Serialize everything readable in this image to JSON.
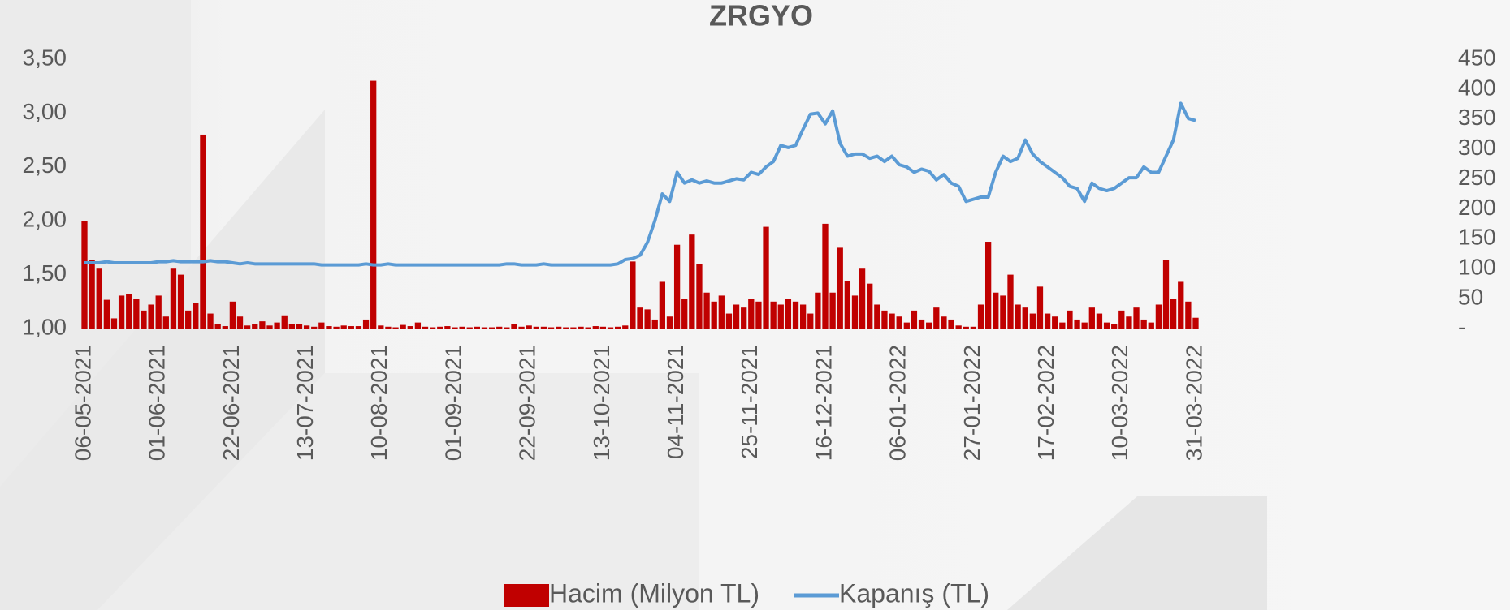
{
  "chart_data": {
    "type": "bar-line",
    "title": "ZRGYO",
    "categories": [
      "06-05-2021",
      null,
      null,
      null,
      null,
      null,
      null,
      null,
      null,
      null,
      "01-06-2021",
      null,
      null,
      null,
      null,
      null,
      null,
      null,
      null,
      null,
      "22-06-2021",
      null,
      null,
      null,
      null,
      null,
      null,
      null,
      null,
      null,
      "13-07-2021",
      null,
      null,
      null,
      null,
      null,
      null,
      null,
      null,
      null,
      "10-08-2021",
      null,
      null,
      null,
      null,
      null,
      null,
      null,
      null,
      null,
      "01-09-2021",
      null,
      null,
      null,
      null,
      null,
      null,
      null,
      null,
      null,
      "22-09-2021",
      null,
      null,
      null,
      null,
      null,
      null,
      null,
      null,
      null,
      "13-10-2021",
      null,
      null,
      null,
      null,
      null,
      null,
      null,
      null,
      null,
      "04-11-2021",
      null,
      null,
      null,
      null,
      null,
      null,
      null,
      null,
      null,
      "25-11-2021",
      null,
      null,
      null,
      null,
      null,
      null,
      null,
      null,
      null,
      "16-12-2021",
      null,
      null,
      null,
      null,
      null,
      null,
      null,
      null,
      null,
      "06-01-2022",
      null,
      null,
      null,
      null,
      null,
      null,
      null,
      null,
      null,
      "27-01-2022",
      null,
      null,
      null,
      null,
      null,
      null,
      null,
      null,
      null,
      "17-02-2022",
      null,
      null,
      null,
      null,
      null,
      null,
      null,
      null,
      null,
      "10-03-2022",
      null,
      null,
      null,
      null,
      null,
      null,
      null,
      null,
      null,
      "31-03-2022"
    ],
    "series": [
      {
        "name": "Hacim (Milyon TL)",
        "kind": "bar",
        "axis": "y2",
        "color": "#c00000",
        "values": [
          180,
          115,
          100,
          48,
          17,
          55,
          57,
          50,
          30,
          40,
          55,
          20,
          100,
          90,
          30,
          43,
          324,
          25,
          8,
          4,
          45,
          20,
          5,
          8,
          12,
          5,
          10,
          22,
          8,
          8,
          5,
          3,
          10,
          4,
          3,
          5,
          4,
          4,
          15,
          414,
          5,
          3,
          2,
          6,
          4,
          10,
          3,
          2,
          3,
          4,
          2,
          3,
          2,
          3,
          2,
          2,
          3,
          2,
          8,
          3,
          5,
          3,
          3,
          2,
          3,
          2,
          2,
          3,
          2,
          4,
          3,
          2,
          3,
          5,
          112,
          35,
          32,
          15,
          78,
          20,
          140,
          50,
          157,
          108,
          60,
          45,
          55,
          25,
          40,
          35,
          50,
          45,
          170,
          45,
          40,
          50,
          45,
          40,
          25,
          60,
          175,
          60,
          135,
          80,
          55,
          100,
          75,
          40,
          30,
          25,
          20,
          10,
          30,
          15,
          10,
          35,
          20,
          15,
          5,
          3,
          3,
          40,
          145,
          60,
          55,
          90,
          40,
          35,
          25,
          70,
          25,
          20,
          10,
          30,
          15,
          10,
          35,
          25,
          10,
          8,
          30,
          20,
          35,
          15,
          10,
          40,
          115,
          50,
          78,
          45,
          18
        ]
      },
      {
        "name": "Kapanış (TL)",
        "kind": "line",
        "axis": "y",
        "color": "#5b9bd5",
        "values": [
          1.61,
          1.61,
          1.61,
          1.62,
          1.61,
          1.61,
          1.61,
          1.61,
          1.61,
          1.61,
          1.62,
          1.62,
          1.63,
          1.62,
          1.62,
          1.62,
          1.62,
          1.63,
          1.62,
          1.62,
          1.61,
          1.6,
          1.61,
          1.6,
          1.6,
          1.6,
          1.6,
          1.6,
          1.6,
          1.6,
          1.6,
          1.6,
          1.59,
          1.59,
          1.59,
          1.59,
          1.59,
          1.59,
          1.6,
          1.59,
          1.59,
          1.6,
          1.59,
          1.59,
          1.59,
          1.59,
          1.59,
          1.59,
          1.59,
          1.59,
          1.59,
          1.59,
          1.59,
          1.59,
          1.59,
          1.59,
          1.59,
          1.6,
          1.6,
          1.59,
          1.59,
          1.59,
          1.6,
          1.59,
          1.59,
          1.59,
          1.59,
          1.59,
          1.59,
          1.59,
          1.59,
          1.59,
          1.6,
          1.64,
          1.65,
          1.68,
          1.8,
          2.0,
          2.25,
          2.18,
          2.45,
          2.35,
          2.38,
          2.35,
          2.37,
          2.35,
          2.35,
          2.37,
          2.39,
          2.38,
          2.45,
          2.43,
          2.5,
          2.55,
          2.7,
          2.68,
          2.7,
          2.85,
          2.99,
          3.0,
          2.9,
          3.02,
          2.72,
          2.6,
          2.62,
          2.62,
          2.58,
          2.6,
          2.55,
          2.6,
          2.52,
          2.5,
          2.45,
          2.48,
          2.46,
          2.38,
          2.43,
          2.35,
          2.32,
          2.18,
          2.2,
          2.22,
          2.22,
          2.45,
          2.6,
          2.55,
          2.58,
          2.75,
          2.62,
          2.55,
          2.5,
          2.45,
          2.4,
          2.32,
          2.3,
          2.18,
          2.35,
          2.3,
          2.28,
          2.3,
          2.35,
          2.4,
          2.4,
          2.5,
          2.45,
          2.45,
          2.6,
          2.75,
          3.09,
          2.95,
          2.93
        ]
      }
    ],
    "ylim": [
      1,
      3.5
    ],
    "yticks": [
      {
        "value": 1,
        "label": "1,00"
      },
      {
        "value": 1.5,
        "label": "1,50"
      },
      {
        "value": 2,
        "label": "2,00"
      },
      {
        "value": 2.5,
        "label": "2,50"
      },
      {
        "value": 3,
        "label": "3,00"
      },
      {
        "value": 3.5,
        "label": "3,50"
      }
    ],
    "y2lim": [
      0,
      450
    ],
    "y2ticks": [
      {
        "value": 0,
        "label": "-"
      },
      50,
      100,
      150,
      200,
      250,
      300,
      350,
      400,
      450
    ],
    "grid": false,
    "legend": "bottom"
  }
}
